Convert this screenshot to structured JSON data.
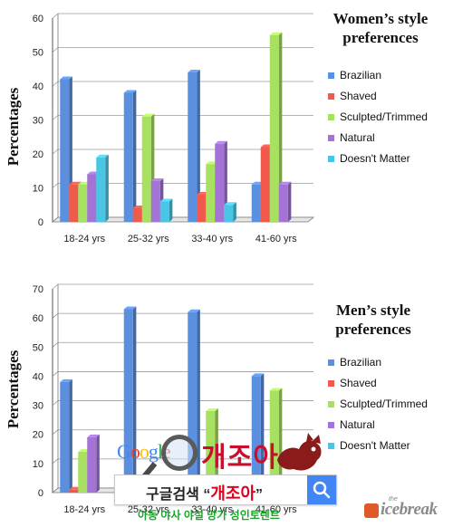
{
  "chart_data": [
    {
      "type": "bar",
      "title": "Women’s style preferences",
      "title_lines": [
        "Women’s style",
        "preferences"
      ],
      "ylabel": "Percentages",
      "ylim": [
        0,
        60
      ],
      "yticks": [
        0,
        10,
        20,
        30,
        40,
        50,
        60
      ],
      "categories": [
        "18-24 yrs",
        "25-32 yrs",
        "33-40 yrs",
        "41-60 yrs"
      ],
      "series": [
        {
          "name": "Brazilian",
          "color": "#5b8fe0",
          "values": [
            42,
            38,
            44,
            11
          ]
        },
        {
          "name": "Shaved",
          "color": "#f05a4d",
          "values": [
            11,
            4,
            8,
            22
          ]
        },
        {
          "name": "Sculpted/Trimmed",
          "color": "#a8e061",
          "values": [
            11,
            31,
            17,
            55
          ]
        },
        {
          "name": "Natural",
          "color": "#a374d6",
          "values": [
            14,
            12,
            23,
            11
          ]
        },
        {
          "name": "Doesn't Matter",
          "color": "#49c6e5",
          "values": [
            19,
            6,
            5,
            0
          ]
        }
      ],
      "legend_position": "right",
      "grid": true
    },
    {
      "type": "bar",
      "title": "Men’s style preferences",
      "title_lines": [
        "Men’s style",
        "preferences"
      ],
      "ylabel": "Percentages",
      "ylim": [
        0,
        70
      ],
      "yticks": [
        0,
        10,
        20,
        30,
        40,
        50,
        60,
        70
      ],
      "categories": [
        "18-24 yrs",
        "25-32 yrs",
        "33-40 yrs",
        "41-60 yrs"
      ],
      "series": [
        {
          "name": "Brazilian",
          "color": "#5b8fe0",
          "values": [
            38,
            63,
            62,
            40
          ]
        },
        {
          "name": "Shaved",
          "color": "#f05a4d",
          "values": [
            1,
            0,
            0,
            0
          ]
        },
        {
          "name": "Sculpted/Trimmed",
          "color": "#a8e061",
          "values": [
            14,
            0,
            28,
            35
          ]
        },
        {
          "name": "Natural",
          "color": "#a374d6",
          "values": [
            19,
            0,
            0,
            0
          ]
        },
        {
          "name": "Doesn't Matter",
          "color": "#49c6e5",
          "values": [
            0,
            0,
            0,
            0
          ]
        }
      ],
      "legend_position": "right",
      "grid": true
    }
  ],
  "ad": {
    "google_letters": [
      "G",
      "o",
      "o",
      "g",
      "l",
      "e"
    ],
    "google_colors": [
      "#4285f4",
      "#ea4335",
      "#fbbc05",
      "#4285f4",
      "#34a853",
      "#ea4335"
    ],
    "brand": "개조아",
    "search_prefix": "구글검색 “",
    "search_term": "개조아",
    "search_suffix": "”",
    "tagline": "아동 야사 야설 망가 성인토렌트"
  },
  "watermark": {
    "the": "the",
    "text": "icebreak"
  }
}
